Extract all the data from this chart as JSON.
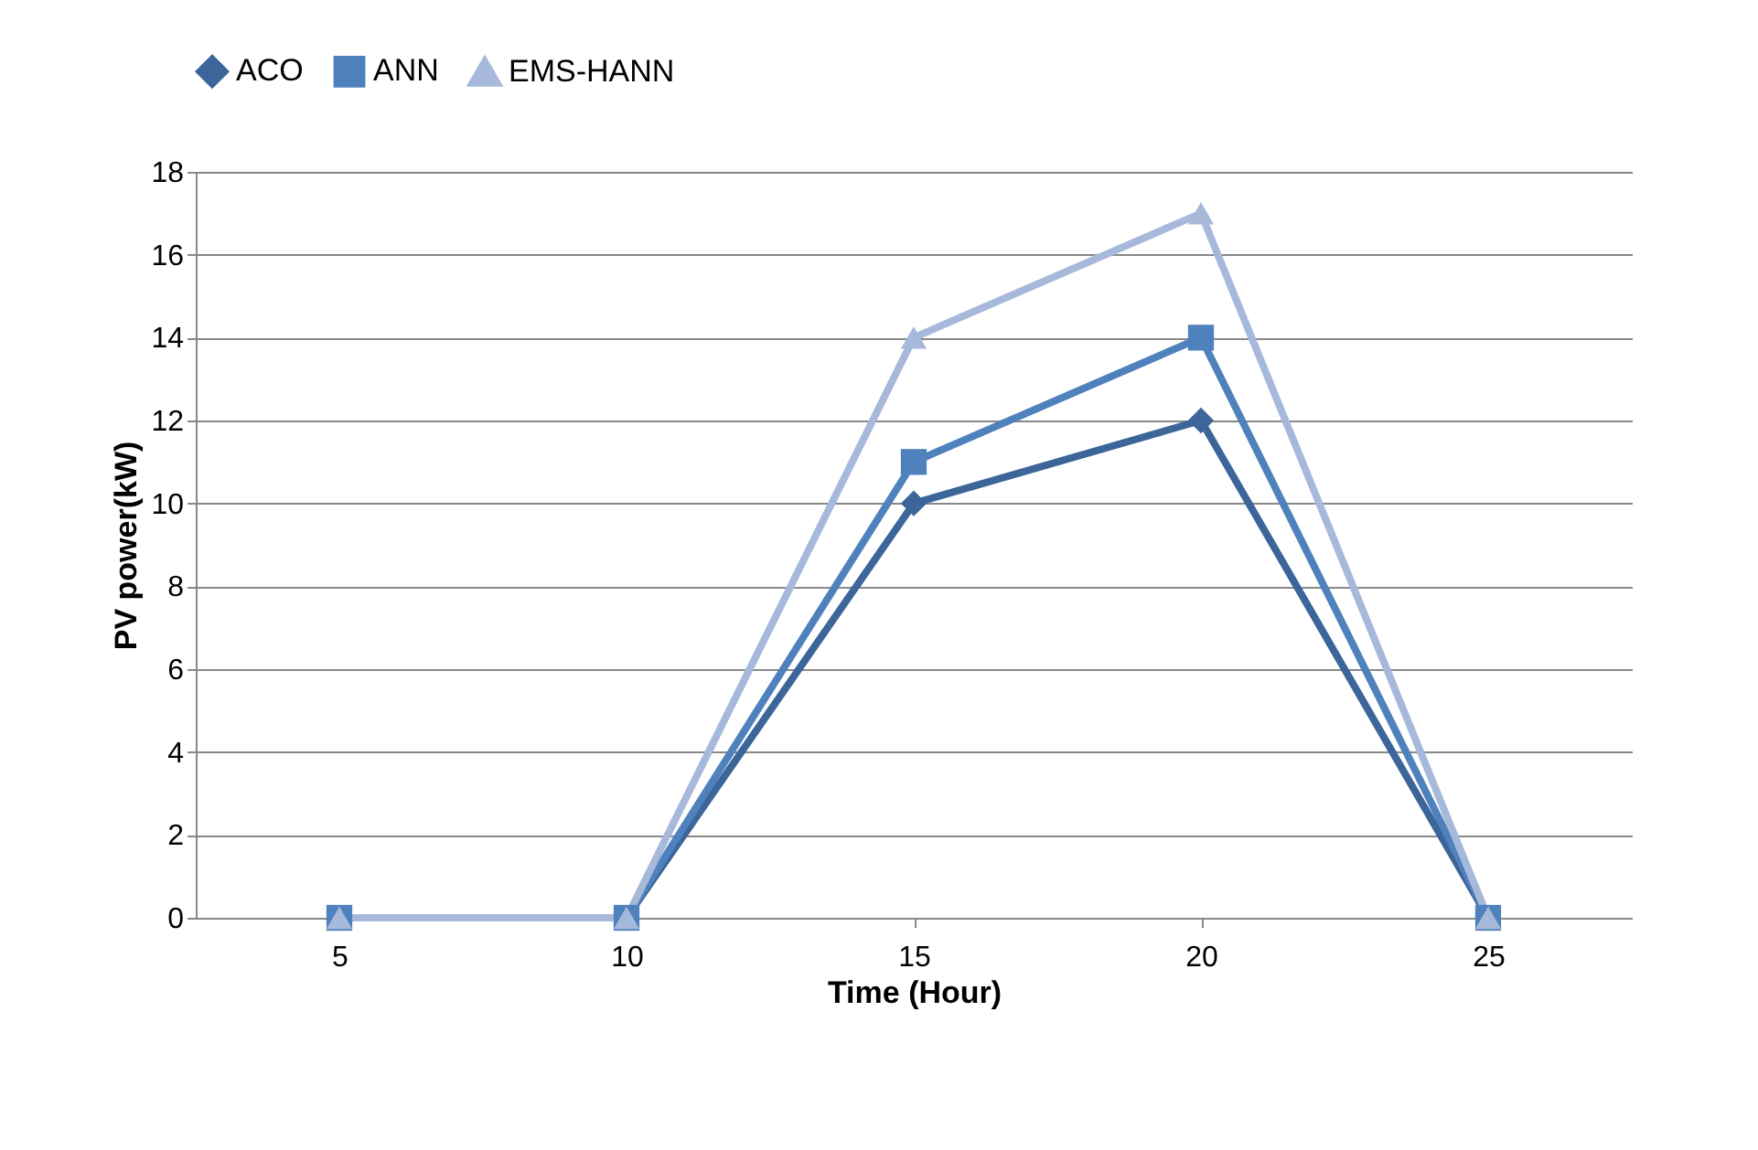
{
  "chart_data": {
    "type": "line",
    "xlabel": "Time (Hour)",
    "ylabel": "PV power(kW)",
    "categories": [
      "5",
      "10",
      "15",
      "20",
      "25"
    ],
    "series": [
      {
        "name": "ACO",
        "color": "#3c6699",
        "marker": "diamond",
        "values": [
          0,
          0,
          10,
          12,
          0
        ]
      },
      {
        "name": "ANN",
        "color": "#4f81bd",
        "marker": "square",
        "values": [
          0,
          0,
          11,
          14,
          0
        ]
      },
      {
        "name": "EMS-HANN",
        "color": "#a7b9da",
        "marker": "triangle",
        "values": [
          0,
          0,
          14,
          17,
          0
        ]
      }
    ],
    "ylim": [
      0,
      18
    ],
    "yticks": [
      0,
      2,
      4,
      6,
      8,
      10,
      12,
      14,
      16,
      18
    ],
    "grid": "y",
    "legend": "top",
    "line_style": "solid"
  }
}
